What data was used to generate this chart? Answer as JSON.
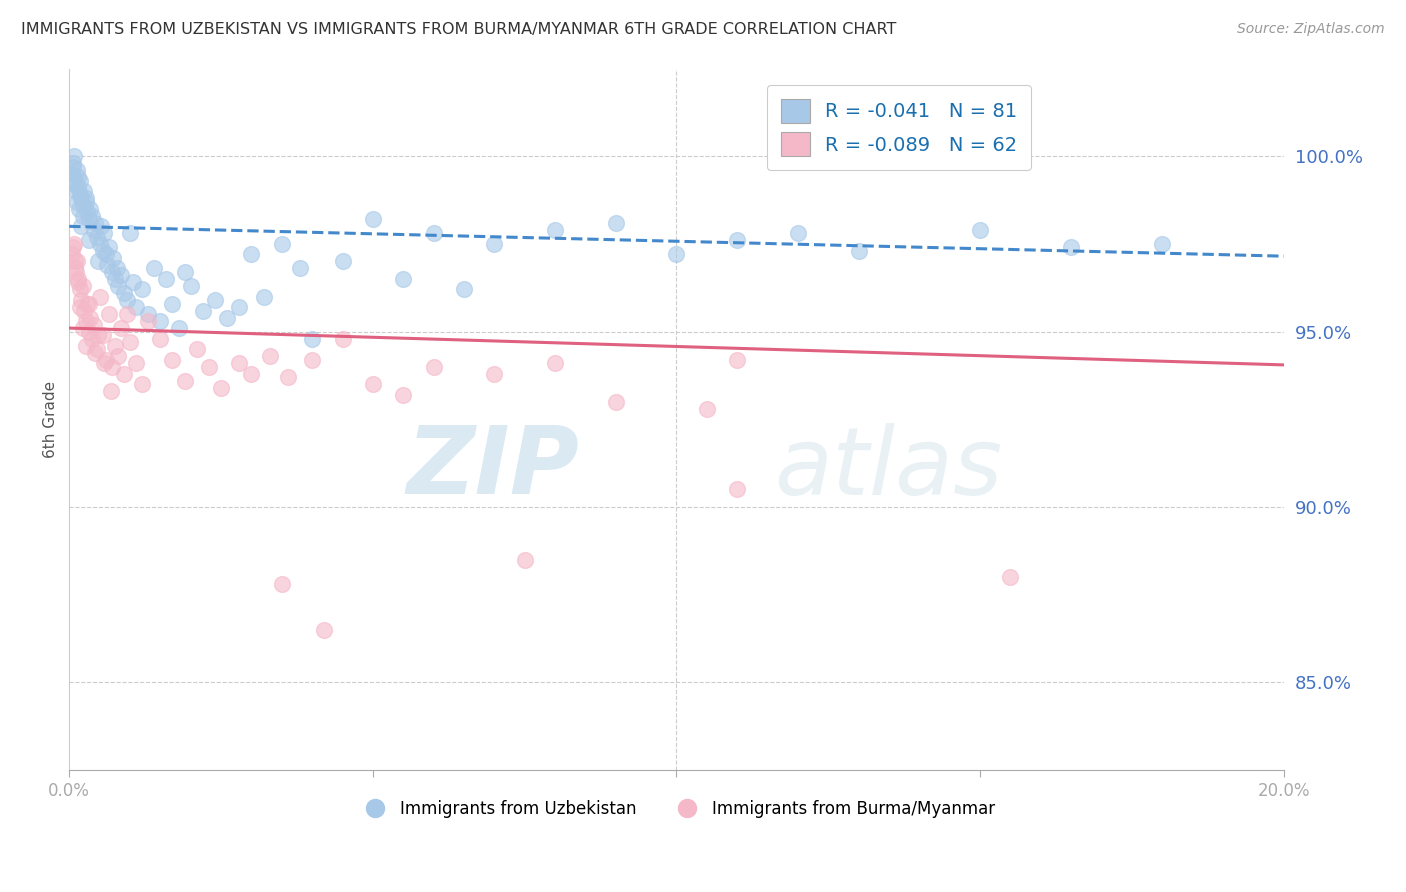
{
  "title": "IMMIGRANTS FROM UZBEKISTAN VS IMMIGRANTS FROM BURMA/MYANMAR 6TH GRADE CORRELATION CHART",
  "source": "Source: ZipAtlas.com",
  "ylabel": "6th Grade",
  "right_yticks": [
    85.0,
    90.0,
    95.0,
    100.0
  ],
  "x_min": 0.0,
  "x_max": 20.0,
  "y_min": 82.5,
  "y_max": 102.5,
  "color_blue": "#a8c8e8",
  "color_pink": "#f4b8c8",
  "color_blue_line": "#4488cc",
  "color_pink_line": "#e06080",
  "watermark_zip": "ZIP",
  "watermark_atlas": "atlas",
  "blue_R": -0.041,
  "blue_N": 81,
  "pink_R": -0.089,
  "pink_N": 62,
  "blue_line_y0": 98.0,
  "blue_line_y1": 97.15,
  "pink_line_y0": 95.1,
  "pink_line_y1": 94.05,
  "blue_scatter_x": [
    0.05,
    0.07,
    0.08,
    0.1,
    0.12,
    0.14,
    0.15,
    0.17,
    0.18,
    0.2,
    0.22,
    0.25,
    0.28,
    0.3,
    0.32,
    0.35,
    0.38,
    0.4,
    0.42,
    0.45,
    0.5,
    0.52,
    0.55,
    0.58,
    0.6,
    0.62,
    0.65,
    0.7,
    0.72,
    0.75,
    0.78,
    0.8,
    0.85,
    0.9,
    0.95,
    1.0,
    1.05,
    1.1,
    1.2,
    1.3,
    1.4,
    1.5,
    1.6,
    1.7,
    1.8,
    1.9,
    2.0,
    2.2,
    2.4,
    2.6,
    2.8,
    3.0,
    3.2,
    3.5,
    3.8,
    4.0,
    4.5,
    5.0,
    5.5,
    6.0,
    6.5,
    7.0,
    8.0,
    9.0,
    10.0,
    11.0,
    12.0,
    13.0,
    15.0,
    16.5,
    18.0,
    0.06,
    0.09,
    0.11,
    0.13,
    0.16,
    0.19,
    0.23,
    0.27,
    0.33,
    0.48
  ],
  "blue_scatter_y": [
    99.5,
    99.8,
    100.0,
    99.2,
    99.6,
    99.4,
    99.1,
    98.9,
    99.3,
    98.8,
    98.6,
    99.0,
    98.7,
    98.4,
    98.2,
    98.5,
    98.3,
    97.9,
    98.1,
    97.7,
    97.5,
    98.0,
    97.3,
    97.8,
    97.2,
    96.9,
    97.4,
    96.7,
    97.1,
    96.5,
    96.8,
    96.3,
    96.6,
    96.1,
    95.9,
    97.8,
    96.4,
    95.7,
    96.2,
    95.5,
    96.8,
    95.3,
    96.5,
    95.8,
    95.1,
    96.7,
    96.3,
    95.6,
    95.9,
    95.4,
    95.7,
    97.2,
    96.0,
    97.5,
    96.8,
    94.8,
    97.0,
    98.2,
    96.5,
    97.8,
    96.2,
    97.5,
    97.9,
    98.1,
    97.2,
    97.6,
    97.8,
    97.3,
    97.9,
    97.4,
    97.5,
    99.7,
    99.3,
    99.0,
    98.7,
    98.5,
    98.0,
    98.3,
    98.8,
    97.6,
    97.0
  ],
  "pink_scatter_x": [
    0.05,
    0.08,
    0.1,
    0.12,
    0.15,
    0.17,
    0.2,
    0.22,
    0.25,
    0.28,
    0.3,
    0.33,
    0.35,
    0.38,
    0.4,
    0.45,
    0.5,
    0.55,
    0.6,
    0.65,
    0.7,
    0.75,
    0.8,
    0.85,
    0.9,
    1.0,
    1.1,
    1.2,
    1.3,
    1.5,
    1.7,
    1.9,
    2.1,
    2.3,
    2.5,
    2.8,
    3.0,
    3.3,
    3.6,
    4.0,
    4.5,
    5.0,
    5.5,
    6.0,
    7.0,
    8.0,
    9.0,
    10.5,
    11.0,
    0.07,
    0.09,
    0.11,
    0.14,
    0.18,
    0.23,
    0.27,
    0.32,
    0.42,
    0.48,
    0.58,
    0.68,
    0.95
  ],
  "pink_scatter_y": [
    97.2,
    97.5,
    96.8,
    97.0,
    96.5,
    96.2,
    95.9,
    96.3,
    95.6,
    95.3,
    95.8,
    95.0,
    95.4,
    94.8,
    95.2,
    94.5,
    96.0,
    94.9,
    94.2,
    95.5,
    94.0,
    94.6,
    94.3,
    95.1,
    93.8,
    94.7,
    94.1,
    93.5,
    95.3,
    94.8,
    94.2,
    93.6,
    94.5,
    94.0,
    93.4,
    94.1,
    93.8,
    94.3,
    93.7,
    94.2,
    94.8,
    93.5,
    93.2,
    94.0,
    93.8,
    94.1,
    93.0,
    92.8,
    94.2,
    97.4,
    97.0,
    96.7,
    96.4,
    95.7,
    95.1,
    94.6,
    95.8,
    94.4,
    94.9,
    94.1,
    93.3,
    95.5
  ],
  "pink_outlier_x": [
    3.5,
    4.2,
    7.5,
    11.0,
    15.5
  ],
  "pink_outlier_y": [
    87.8,
    86.5,
    88.5,
    90.5,
    88.0
  ]
}
